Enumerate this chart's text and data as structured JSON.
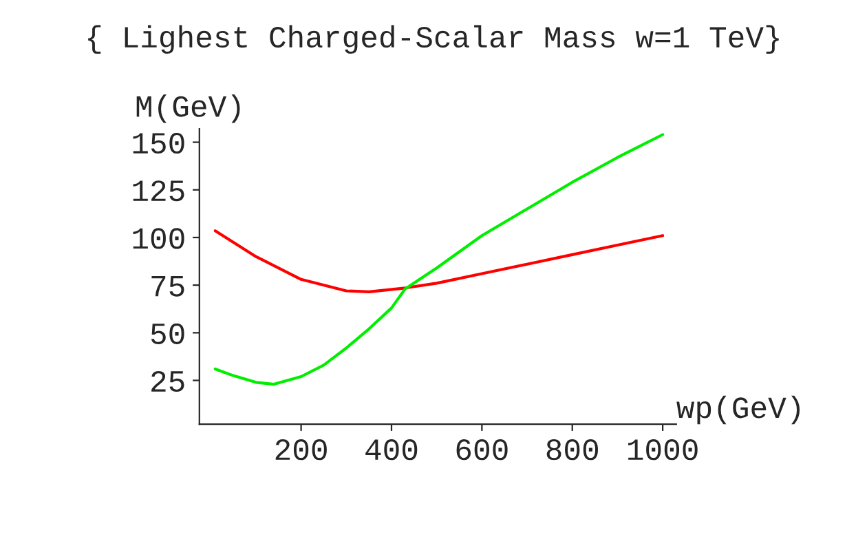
{
  "chart_data": {
    "type": "line",
    "title": "{ Lighest Charged-Scalar Mass w=1 TeV}",
    "xlabel": "wp(GeV)",
    "ylabel": "M(GeV)",
    "xlim": [
      -25,
      1030
    ],
    "ylim": [
      2,
      157
    ],
    "xticks": [
      200,
      400,
      600,
      800,
      1000
    ],
    "yticks": [
      25,
      50,
      75,
      100,
      125,
      150
    ],
    "grid": false,
    "legend": false,
    "series": [
      {
        "color": "#ff0000",
        "x": [
          10,
          100,
          200,
          300,
          350,
          430,
          500,
          600,
          700,
          800,
          900,
          1000
        ],
        "values": [
          103.5,
          90,
          78,
          72,
          71.5,
          73.5,
          76,
          81,
          86,
          91,
          96,
          101
        ]
      },
      {
        "color": "#00ee00",
        "x": [
          10,
          50,
          100,
          140,
          200,
          250,
          300,
          350,
          400,
          430,
          500,
          600,
          700,
          800,
          900,
          1000
        ],
        "values": [
          31,
          27.5,
          24,
          23,
          27,
          33,
          42,
          52,
          63,
          73,
          84,
          101,
          115,
          129,
          142,
          154
        ]
      }
    ]
  }
}
